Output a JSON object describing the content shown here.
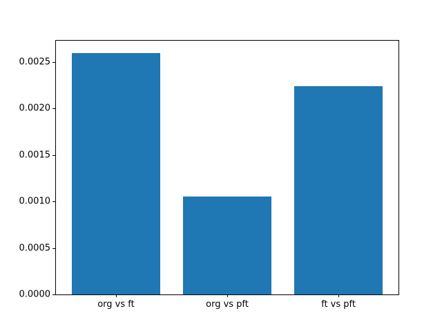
{
  "figure": {
    "background": "#ffffff"
  },
  "chart_data": {
    "type": "bar",
    "categories": [
      "org vs ft",
      "org vs pft",
      "ft vs pft"
    ],
    "values": [
      0.0026,
      0.00105,
      0.00224
    ],
    "title": "",
    "xlabel": "",
    "ylabel": "",
    "ylim": [
      0,
      0.00273
    ],
    "xlim": [
      -0.54,
      2.54
    ],
    "bar_width": 0.8,
    "bar_color": "#1f77b4",
    "frame_color": "#000000",
    "text_color": "#000000",
    "yticks": [
      0.0,
      0.0005,
      0.001,
      0.0015,
      0.002,
      0.0025
    ],
    "ytick_labels": [
      "0.0000",
      "0.0005",
      "0.0010",
      "0.0015",
      "0.0020",
      "0.0025"
    ],
    "grid": false,
    "legend": null
  }
}
